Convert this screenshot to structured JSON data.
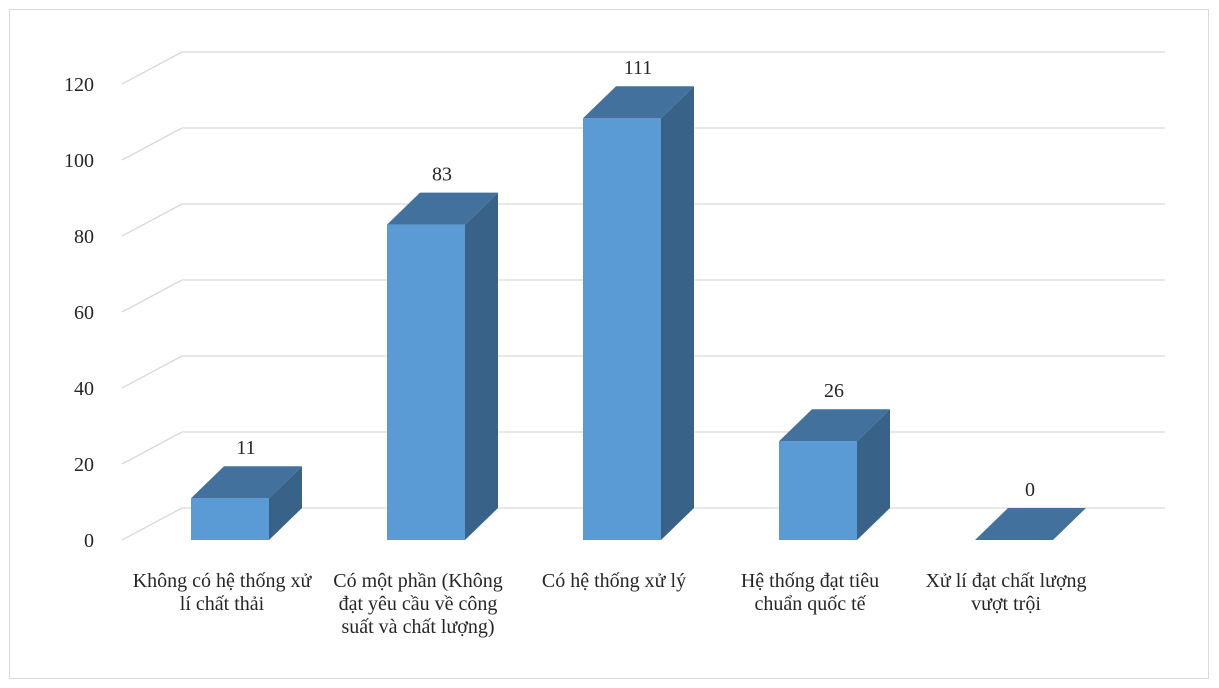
{
  "chart_data": {
    "type": "bar",
    "style": "3d-column",
    "title": "",
    "xlabel": "",
    "ylabel": "",
    "categories": [
      "Không có hệ thống xử lí chất thải",
      "Có một phần (Không đạt yêu cầu về công suất và chất lượng)",
      "Có hệ thống xử lý",
      "Hệ thống đạt tiêu chuẩn quốc tế",
      "Xử lí đạt chất lượng vượt trội"
    ],
    "values": [
      11,
      83,
      111,
      26,
      0
    ],
    "data_labels": [
      "11",
      "83",
      "111",
      "26",
      "0"
    ],
    "ylim": [
      0,
      120
    ],
    "yticks": [
      "0",
      "20",
      "40",
      "60",
      "80",
      "100",
      "120"
    ],
    "grid": true,
    "legend": "none",
    "colors": {
      "front": "#5b9bd5",
      "side": "#386287",
      "top": "#41719c",
      "grid": "#d9d9d9",
      "text": "#262626"
    }
  }
}
